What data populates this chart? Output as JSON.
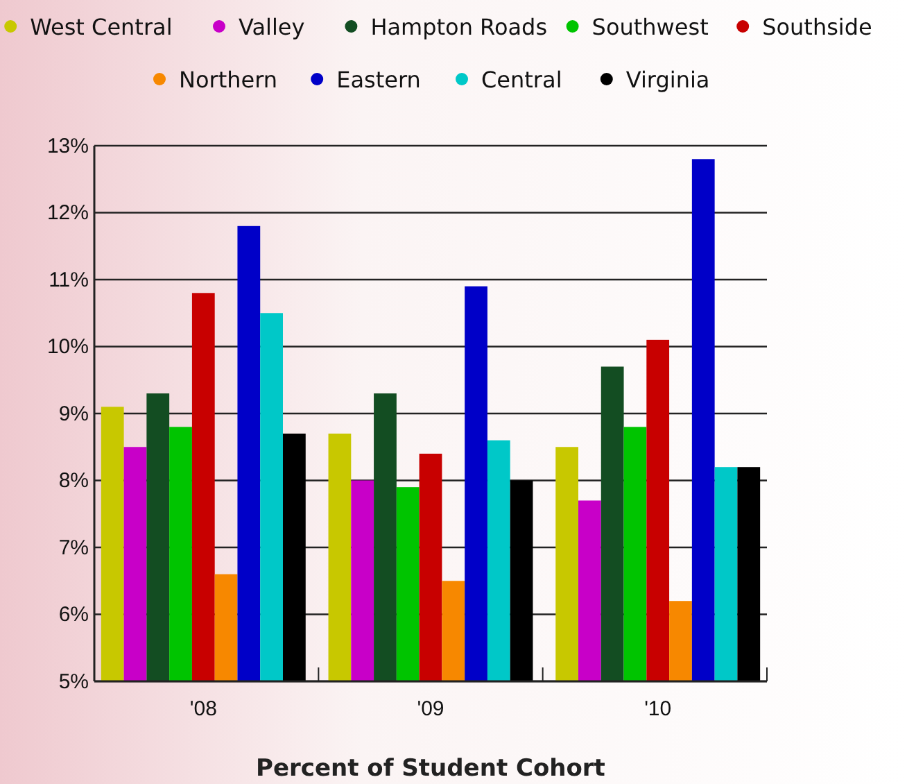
{
  "chart_data": {
    "type": "bar",
    "xlabel": "Percent of Student Cohort",
    "categories": [
      "'08",
      "'09",
      "'10"
    ],
    "series": [
      {
        "name": "West Central",
        "color": "#c8c800",
        "values": [
          9.1,
          8.7,
          8.5
        ]
      },
      {
        "name": "Valley",
        "color": "#c800c8",
        "values": [
          8.5,
          8.0,
          7.7
        ]
      },
      {
        "name": "Hampton Roads",
        "color": "#134d22",
        "values": [
          9.3,
          9.3,
          9.7
        ]
      },
      {
        "name": "Southwest",
        "color": "#00c400",
        "values": [
          8.8,
          7.9,
          8.8
        ]
      },
      {
        "name": "Southside",
        "color": "#c80000",
        "values": [
          10.8,
          8.4,
          10.1
        ]
      },
      {
        "name": "Northern",
        "color": "#f78800",
        "values": [
          6.6,
          6.5,
          6.2
        ]
      },
      {
        "name": "Eastern",
        "color": "#0000c8",
        "values": [
          11.8,
          10.9,
          12.8
        ]
      },
      {
        "name": "Central",
        "color": "#00c8c8",
        "values": [
          10.5,
          8.6,
          8.2
        ]
      },
      {
        "name": "Virginia",
        "color": "#000000",
        "values": [
          8.7,
          8.0,
          8.2
        ]
      }
    ],
    "ylim": [
      5,
      13
    ],
    "yticks": [
      {
        "value": 5,
        "label": "5%"
      },
      {
        "value": 6,
        "label": "6%"
      },
      {
        "value": 7,
        "label": "7%"
      },
      {
        "value": 8,
        "label": "8%"
      },
      {
        "value": 9,
        "label": "9%"
      },
      {
        "value": 10,
        "label": "10%"
      },
      {
        "value": 11,
        "label": "11%"
      },
      {
        "value": 12,
        "label": "12%"
      },
      {
        "value": 13,
        "label": "13%"
      }
    ],
    "grid": "y",
    "legend": "top"
  }
}
